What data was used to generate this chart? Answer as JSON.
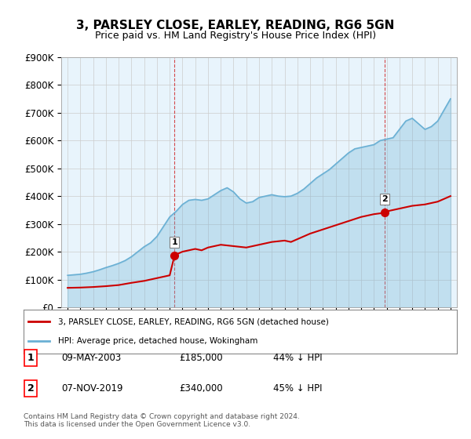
{
  "title": "3, PARSLEY CLOSE, EARLEY, READING, RG6 5GN",
  "subtitle": "Price paid vs. HM Land Registry's House Price Index (HPI)",
  "ylabel": "",
  "ylim": [
    0,
    900000
  ],
  "yticks": [
    0,
    100000,
    200000,
    300000,
    400000,
    500000,
    600000,
    700000,
    800000,
    900000
  ],
  "ytick_labels": [
    "£0",
    "£100K",
    "£200K",
    "£300K",
    "£400K",
    "£500K",
    "£600K",
    "£700K",
    "£800K",
    "£900K"
  ],
  "legend_line1": "3, PARSLEY CLOSE, EARLEY, READING, RG6 5GN (detached house)",
  "legend_line2": "HPI: Average price, detached house, Wokingham",
  "sale1_date": "09-MAY-2003",
  "sale1_price": 185000,
  "sale1_label": "44% ↓ HPI",
  "sale2_date": "07-NOV-2019",
  "sale2_price": 340000,
  "sale2_label": "45% ↓ HPI",
  "footnote": "Contains HM Land Registry data © Crown copyright and database right 2024.\nThis data is licensed under the Open Government Licence v3.0.",
  "hpi_color": "#6ab0d4",
  "sale_color": "#cc0000",
  "dashed_color": "#cc0000",
  "grid_color": "#cccccc",
  "bg_color": "#e8f4fc"
}
